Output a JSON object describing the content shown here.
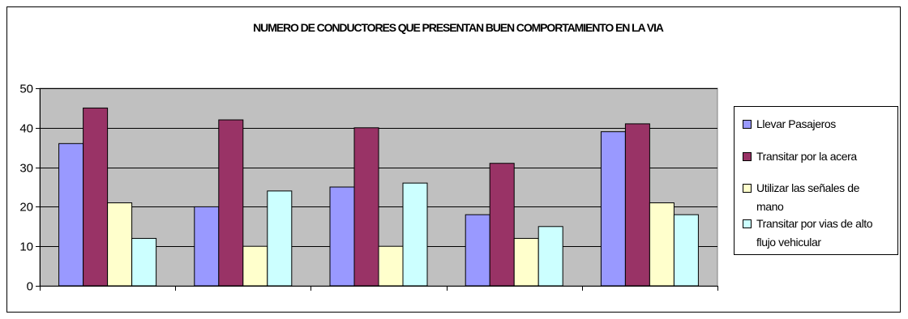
{
  "chart_data": {
    "type": "bar",
    "title": "NUMERO DE CONDUCTORES QUE PRESENTAN BUEN COMPORTAMIENTO EN LA VIA",
    "categories": [
      "",
      "",
      "",
      "",
      ""
    ],
    "ylim": [
      0,
      50
    ],
    "yticks": [
      "0",
      "10",
      "20",
      "30",
      "40",
      "50"
    ],
    "grid": true,
    "legend_position": "right",
    "plot_background": "#c0c0c0",
    "series": [
      {
        "name": "Llevar Pasajeros",
        "color": "#9999ff",
        "values": [
          36,
          20,
          25,
          18,
          39
        ]
      },
      {
        "name": "Transitar por la acera",
        "color": "#993366",
        "values": [
          45,
          42,
          40,
          31,
          41
        ]
      },
      {
        "name": "Utilizar las señales de mano",
        "color": "#ffffcc",
        "values": [
          21,
          10,
          10,
          12,
          21
        ]
      },
      {
        "name": "Transitar por vias de alto flujo vehicular",
        "color": "#ccffff",
        "values": [
          12,
          24,
          26,
          15,
          18
        ]
      }
    ]
  },
  "legend": {
    "items": [
      {
        "lines": [
          "Llevar Pasajeros"
        ],
        "color": "#9999ff"
      },
      {
        "lines": [
          "Transitar por la acera"
        ],
        "color": "#993366"
      },
      {
        "lines": [
          "Utilizar las señales de",
          "mano"
        ],
        "color": "#ffffcc"
      },
      {
        "lines": [
          "Transitar por vias de alto",
          "flujo vehicular"
        ],
        "color": "#ccffff"
      }
    ]
  }
}
